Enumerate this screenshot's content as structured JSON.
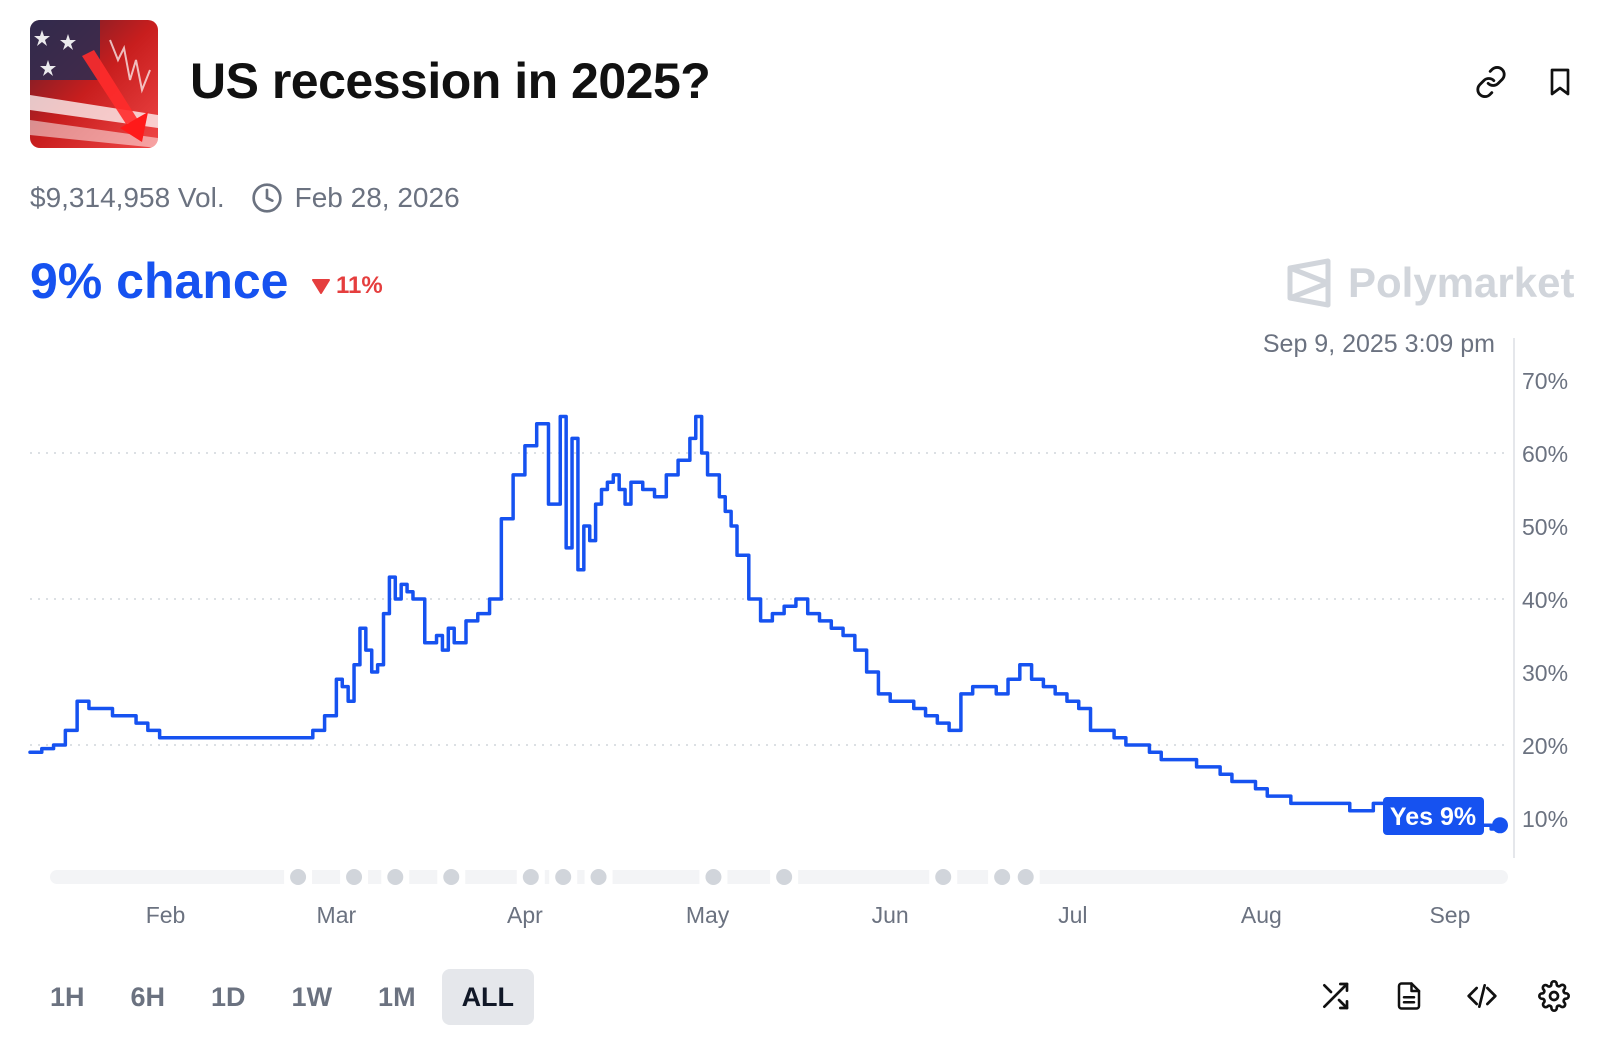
{
  "market": {
    "title": "US recession in 2025?",
    "volume": "$9,314,958 Vol.",
    "end_date": "Feb 28, 2026"
  },
  "odds": {
    "chance": "9% chance",
    "change": "11%",
    "change_color": "#e53e3e"
  },
  "brand": {
    "name": "Polymarket"
  },
  "chart_timestamp": "Sep 9, 2025 3:09 pm",
  "time_ranges": [
    "1H",
    "6H",
    "1D",
    "1W",
    "1M",
    "ALL"
  ],
  "active_range": "ALL",
  "icons": {
    "link": "link-icon",
    "bookmark": "bookmark-icon",
    "clock": "clock-icon",
    "shuffle": "shuffle-icon",
    "document": "document-icon",
    "embed": "code-icon",
    "settings": "gear-icon"
  },
  "colors": {
    "accent": "#1652f0",
    "negative": "#e53e3e",
    "muted": "#6b7280"
  },
  "chart_data": {
    "type": "line",
    "title": "",
    "xlabel": "",
    "ylabel": "",
    "ylim": [
      4,
      72
    ],
    "y_ticks": [
      10,
      20,
      30,
      40,
      50,
      60,
      70
    ],
    "y_tick_labels": [
      "10%",
      "20%",
      "30%",
      "40%",
      "50%",
      "60%",
      "70%"
    ],
    "x_tick_labels": [
      "Feb",
      "Mar",
      "Apr",
      "May",
      "Jun",
      "Jul",
      "Aug",
      "Sep"
    ],
    "x_tick_day": [
      23,
      52,
      84,
      115,
      146,
      177,
      209,
      241
    ],
    "xlim": [
      0,
      249.5
    ],
    "event_marker_days": [
      45.5,
      55,
      62,
      71.5,
      85,
      90.5,
      96.5,
      116,
      128,
      155,
      165,
      169
    ],
    "series": [
      {
        "name": "Yes",
        "color": "#1652f0",
        "end_label": "Yes 9%",
        "x": [
          0,
          2,
          4,
          6,
          8,
          10,
          12,
          14,
          16,
          18,
          20,
          22,
          24,
          26,
          28,
          30,
          32,
          34,
          36,
          38,
          40,
          42,
          44,
          46,
          48,
          50,
          52,
          53,
          54,
          55,
          56,
          57,
          58,
          59,
          60,
          61,
          62,
          63,
          64,
          65,
          66,
          67,
          68,
          69,
          70,
          71,
          72,
          74,
          76,
          78,
          80,
          82,
          84,
          86,
          88,
          90,
          91,
          92,
          93,
          94,
          95,
          96,
          97,
          98,
          99,
          100,
          101,
          102,
          104,
          106,
          108,
          110,
          112,
          113,
          114,
          115,
          116,
          117,
          118,
          119,
          120,
          122,
          124,
          126,
          128,
          130,
          132,
          134,
          136,
          138,
          140,
          142,
          144,
          146,
          148,
          150,
          152,
          154,
          156,
          158,
          160,
          162,
          164,
          166,
          168,
          170,
          172,
          174,
          176,
          178,
          180,
          182,
          184,
          186,
          188,
          190,
          192,
          194,
          196,
          198,
          200,
          202,
          204,
          206,
          208,
          210,
          212,
          214,
          216,
          218,
          220,
          222,
          224,
          226,
          228,
          230,
          232,
          234,
          236,
          238,
          240,
          242,
          244,
          246,
          248,
          249.5
        ],
        "values": [
          19,
          19.5,
          20,
          22,
          26,
          25,
          25,
          24,
          24,
          23,
          22,
          21,
          21,
          21,
          21,
          21,
          21,
          21,
          21,
          21,
          21,
          21,
          21,
          21,
          22,
          24,
          29,
          28,
          26,
          31,
          36,
          33,
          30,
          31,
          38,
          43,
          40,
          42,
          41,
          40,
          40,
          34,
          34,
          35,
          33,
          36,
          34,
          37,
          38,
          40,
          51,
          57,
          61,
          64,
          53,
          65,
          47,
          62,
          44,
          50,
          48,
          53,
          55,
          56,
          57,
          55,
          53,
          56,
          55,
          54,
          57,
          59,
          62,
          65,
          60,
          57,
          57,
          54,
          52,
          50,
          46,
          40,
          37,
          38,
          39,
          40,
          38,
          37,
          36,
          35,
          33,
          30,
          27,
          26,
          26,
          25,
          24,
          23,
          22,
          27,
          28,
          28,
          27,
          29,
          31,
          29,
          28,
          27,
          26,
          25,
          22,
          22,
          21,
          20,
          20,
          19,
          18,
          18,
          18,
          17,
          17,
          16,
          15,
          15,
          14,
          13,
          13,
          12,
          12,
          12,
          12,
          12,
          11,
          11,
          12,
          12,
          12,
          11,
          10,
          10,
          10,
          10,
          10,
          9,
          8.5,
          9
        ]
      }
    ]
  }
}
